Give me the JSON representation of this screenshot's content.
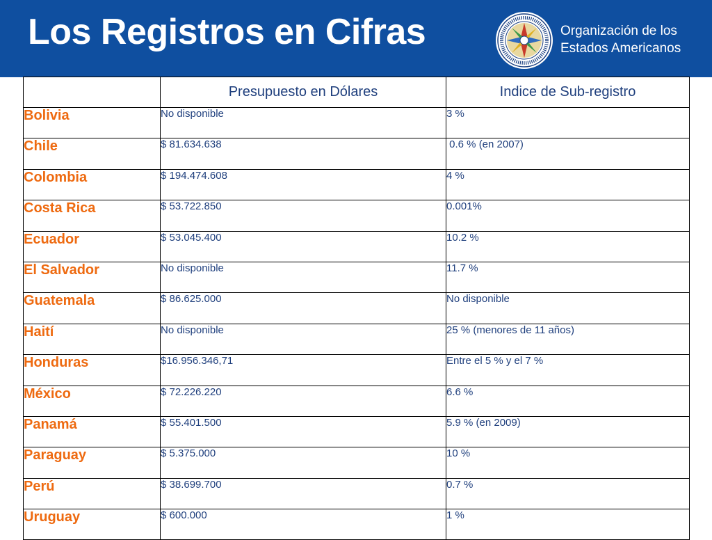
{
  "header": {
    "title": "Los Registros en Cifras",
    "org_line1": "Organización de los",
    "org_line2": "Estados Americanos",
    "logo_icon": "oas-seal-icon",
    "background_color": "#0f4fa0"
  },
  "table": {
    "columns": [
      "",
      "Presupuesto en Dólares",
      "Indice de Sub-registro"
    ],
    "rows": [
      {
        "country": "Bolivia",
        "budget": "No disponible",
        "index": "3 %"
      },
      {
        "country": "Chile",
        "budget": "$ 81.634.638",
        "index": " 0.6 % (en 2007)"
      },
      {
        "country": "Colombia",
        "budget": "$ 194.474.608",
        "index": "4 %"
      },
      {
        "country": "Costa Rica",
        "budget": "$ 53.722.850",
        "index": "0.001%"
      },
      {
        "country": "Ecuador",
        "budget": "$ 53.045.400",
        "index": "10.2 %"
      },
      {
        "country": "El Salvador",
        "budget": "No disponible",
        "index": "11.7 %"
      },
      {
        "country": "Guatemala",
        "budget": "$ 86.625.000",
        "index": "No disponible"
      },
      {
        "country": "Haití",
        "budget": "No disponible",
        "index": "25 % (menores de 11 años)"
      },
      {
        "country": "Honduras",
        "budget": "$16.956.346,71",
        "index": "Entre el 5 % y el 7 %"
      },
      {
        "country": "México",
        "budget": "$ 72.226.220",
        "index": "6.6 %"
      },
      {
        "country": "Panamá",
        "budget": "$ 55.401.500",
        "index": "5.9 % (en 2009)"
      },
      {
        "country": "Paraguay",
        "budget": "$ 5.375.000",
        "index": "10 %"
      },
      {
        "country": "Perú",
        "budget": "$ 38.699.700",
        "index": "0.7 %"
      },
      {
        "country": "Uruguay",
        "budget": "$ 600.000",
        "index": "1 %"
      }
    ]
  },
  "colors": {
    "country_text": "#ee6a10",
    "value_text": "#1f3f7d"
  }
}
